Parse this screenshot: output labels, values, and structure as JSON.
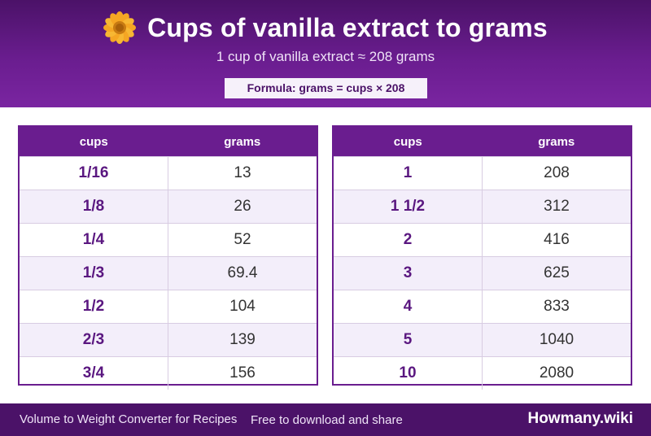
{
  "header": {
    "icon": "flower-icon",
    "title": "Cups of vanilla extract to grams",
    "subtitle": "1 cup of vanilla extract ≈ 208 grams",
    "formula": "Formula: grams = cups × 208"
  },
  "tables": [
    {
      "col1": "cups",
      "col2": "grams",
      "rows": [
        {
          "cups": "1/16",
          "grams": "13"
        },
        {
          "cups": "1/8",
          "grams": "26"
        },
        {
          "cups": "1/4",
          "grams": "52"
        },
        {
          "cups": "1/3",
          "grams": "69.4"
        },
        {
          "cups": "1/2",
          "grams": "104"
        },
        {
          "cups": "2/3",
          "grams": "139"
        },
        {
          "cups": "3/4",
          "grams": "156"
        }
      ]
    },
    {
      "col1": "cups",
      "col2": "grams",
      "rows": [
        {
          "cups": "1",
          "grams": "208"
        },
        {
          "cups": "1 1/2",
          "grams": "312"
        },
        {
          "cups": "2",
          "grams": "416"
        },
        {
          "cups": "3",
          "grams": "625"
        },
        {
          "cups": "4",
          "grams": "833"
        },
        {
          "cups": "5",
          "grams": "1040"
        },
        {
          "cups": "10",
          "grams": "2080"
        }
      ]
    }
  ],
  "footer": {
    "left": "Volume to Weight Converter for Recipes",
    "middle": "Free to download and share",
    "brand": "Howmany.wiki"
  },
  "colors": {
    "primary": "#6a1d8f",
    "dark": "#4b1268",
    "row_alt": "#f3eefa"
  }
}
